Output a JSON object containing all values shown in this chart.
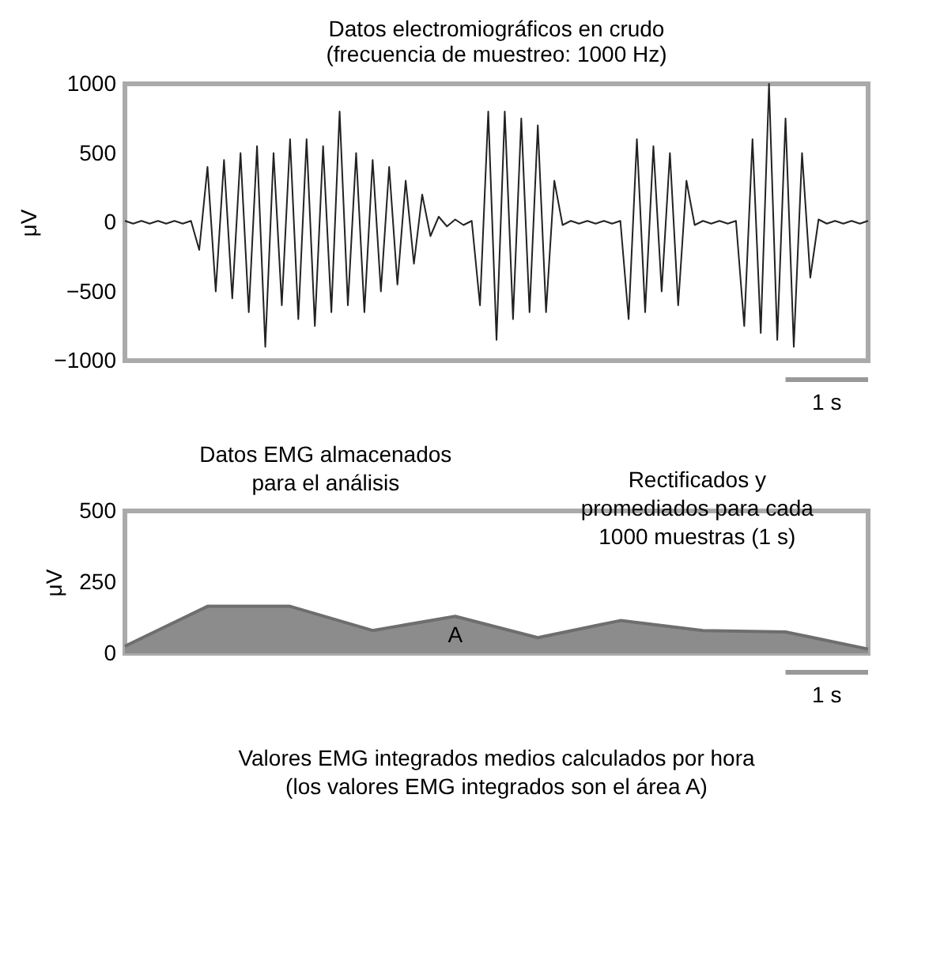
{
  "chart_data": [
    {
      "type": "line",
      "title": "Datos electromiográficos en crudo\n(frecuencia de muestreo: 1000 Hz)",
      "ylabel": "μV",
      "color": "#222222",
      "ylim": [
        -1000,
        1000
      ],
      "yticks": [
        -1000,
        -500,
        0,
        500,
        1000
      ],
      "tick_labels": "y",
      "grid": false,
      "categories": [
        null,
        null,
        null,
        null,
        null,
        null,
        null,
        null,
        null,
        null,
        null,
        null,
        null,
        null,
        null,
        null,
        null,
        null,
        null,
        null,
        null,
        null,
        null,
        null,
        null,
        null,
        null,
        null,
        null,
        null,
        null,
        null,
        null,
        null,
        null,
        null,
        null,
        null,
        null,
        null,
        null,
        null,
        null,
        null,
        null,
        null,
        null,
        null,
        null,
        null,
        null,
        null,
        null,
        null,
        null,
        null,
        null,
        null,
        null,
        null,
        null,
        null,
        null,
        null,
        null,
        null,
        null,
        null,
        null,
        null,
        null,
        null,
        null,
        null,
        null,
        null,
        null,
        null,
        null,
        null,
        null,
        null,
        null,
        null,
        null,
        null,
        null,
        null,
        null,
        null,
        null
      ],
      "values": [
        10,
        -10,
        10,
        -10,
        10,
        -10,
        10,
        -10,
        10,
        -200,
        400,
        -500,
        450,
        -550,
        500,
        -650,
        550,
        -900,
        500,
        -600,
        600,
        -700,
        600,
        -750,
        550,
        -650,
        800,
        -600,
        500,
        -650,
        450,
        -500,
        400,
        -450,
        300,
        -300,
        200,
        -100,
        40,
        -30,
        20,
        -20,
        10,
        -600,
        800,
        -850,
        800,
        -700,
        750,
        -650,
        700,
        -650,
        300,
        -20,
        10,
        -10,
        10,
        -10,
        10,
        -10,
        10,
        -700,
        600,
        -650,
        550,
        -500,
        500,
        -600,
        300,
        -20,
        10,
        -10,
        10,
        -10,
        10,
        -750,
        600,
        -800,
        1000,
        -850,
        750,
        -900,
        500,
        -400,
        20,
        -10,
        10,
        -10,
        10,
        -10,
        10
      ],
      "annotations": [
        "1 s"
      ]
    },
    {
      "type": "area",
      "ylabel": "μV",
      "color": "#8c8c8c",
      "ylim": [
        0,
        500
      ],
      "yticks": [
        0,
        250,
        500
      ],
      "tick_labels": "y",
      "grid": false,
      "categories": [
        null,
        null,
        null,
        null,
        null,
        null,
        null,
        null,
        null,
        null
      ],
      "values": [
        25,
        165,
        165,
        80,
        130,
        55,
        115,
        80,
        75,
        15
      ],
      "annotations": [
        "Datos EMG almacenados\npara el análisis",
        "Rectificados y\npromediados para cada\n1000 muestras (1 s)",
        "A",
        "1 s",
        "Valores EMG integrados medios calculados por hora\n(los valores EMG integrados son el área A)"
      ]
    }
  ]
}
